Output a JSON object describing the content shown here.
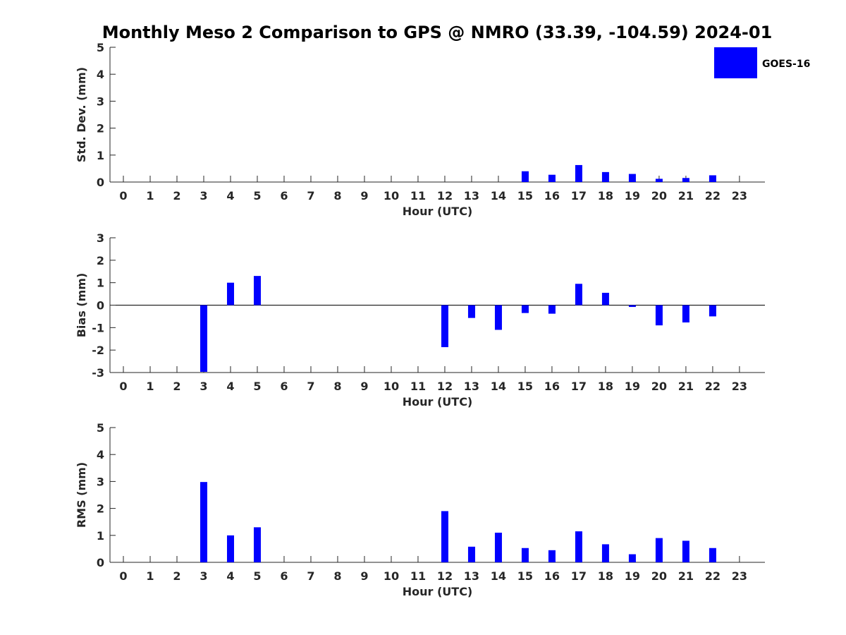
{
  "title": "Monthly Meso 2 Comparison to GPS @ NMRO (33.39, -104.59) 2024-01",
  "colors": {
    "bar": "#0000ff",
    "axis": "#262626",
    "background": "#ffffff"
  },
  "legend": {
    "label": "GOES-16",
    "placement": "top-right"
  },
  "chart_data": [
    {
      "type": "bar",
      "title": "",
      "xlabel": "Hour (UTC)",
      "ylabel": "Std. Dev. (mm)",
      "ylim": [
        0,
        5
      ],
      "yticks": [
        0,
        1,
        2,
        3,
        4,
        5
      ],
      "categories": [
        0,
        1,
        2,
        3,
        4,
        5,
        6,
        7,
        8,
        9,
        10,
        11,
        12,
        13,
        14,
        15,
        16,
        17,
        18,
        19,
        20,
        21,
        22,
        23
      ],
      "series": [
        {
          "name": "GOES-16",
          "values": [
            0,
            0,
            0,
            0,
            0,
            0,
            0,
            0,
            0,
            0,
            0,
            0,
            0,
            0,
            0,
            0.4,
            0.27,
            0.63,
            0.37,
            0.3,
            0.12,
            0.15,
            0.25,
            0
          ]
        }
      ],
      "zero_line": false
    },
    {
      "type": "bar",
      "title": "",
      "xlabel": "Hour (UTC)",
      "ylabel": "Bias (mm)",
      "ylim": [
        -3,
        3
      ],
      "yticks": [
        -3,
        -2,
        -1,
        0,
        1,
        2,
        3
      ],
      "categories": [
        0,
        1,
        2,
        3,
        4,
        5,
        6,
        7,
        8,
        9,
        10,
        11,
        12,
        13,
        14,
        15,
        16,
        17,
        18,
        19,
        20,
        21,
        22,
        23
      ],
      "series": [
        {
          "name": "GOES-16",
          "values": [
            0,
            0,
            0,
            -2.97,
            1.0,
            1.3,
            0,
            0,
            0,
            0,
            0,
            0,
            -1.87,
            -0.57,
            -1.1,
            -0.35,
            -0.38,
            0.95,
            0.55,
            -0.08,
            -0.9,
            -0.77,
            -0.5,
            0
          ]
        }
      ],
      "zero_line": true
    },
    {
      "type": "bar",
      "title": "",
      "xlabel": "Hour (UTC)",
      "ylabel": "RMS (mm)",
      "ylim": [
        0,
        5
      ],
      "yticks": [
        0,
        1,
        2,
        3,
        4,
        5
      ],
      "categories": [
        0,
        1,
        2,
        3,
        4,
        5,
        6,
        7,
        8,
        9,
        10,
        11,
        12,
        13,
        14,
        15,
        16,
        17,
        18,
        19,
        20,
        21,
        22,
        23
      ],
      "series": [
        {
          "name": "GOES-16",
          "values": [
            0,
            0,
            0,
            2.98,
            1.0,
            1.3,
            0,
            0,
            0,
            0,
            0,
            0,
            1.9,
            0.58,
            1.1,
            0.53,
            0.45,
            1.15,
            0.67,
            0.3,
            0.9,
            0.8,
            0.53,
            0
          ]
        }
      ],
      "zero_line": false
    }
  ]
}
